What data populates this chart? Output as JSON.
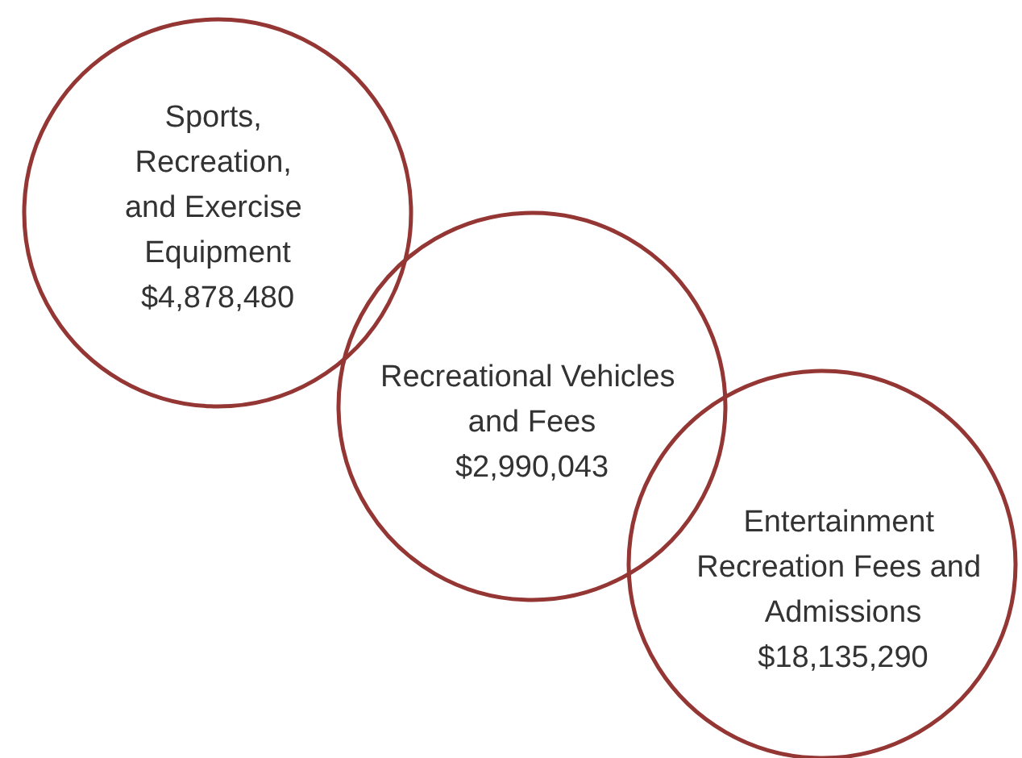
{
  "chart_data": {
    "type": "other",
    "categories": [
      "Sports, Recreation, and Exercise Equipment",
      "Recreational Vehicles and Fees",
      "Entertainment Recreation Fees and Admissions"
    ],
    "values": [
      4878480,
      2990043,
      18135290
    ],
    "value_labels": [
      "$4,878,480",
      "$2,990,043",
      "$18,135,290"
    ],
    "color": "#943634"
  }
}
